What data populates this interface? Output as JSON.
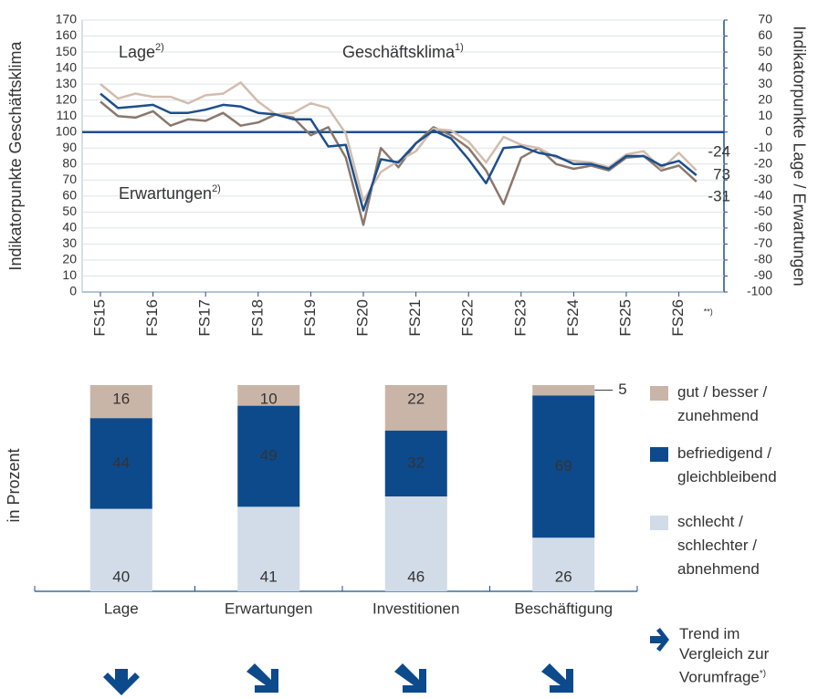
{
  "chart_data": [
    {
      "type": "line",
      "ylabel": "Indikatorpunkte Geschäftsklima",
      "y2label": "Indikatorpunkte Lage / Erwartungen",
      "categories": [
        "FS15",
        null,
        null,
        "FS16",
        null,
        null,
        "FS17",
        null,
        null,
        "FS18",
        null,
        null,
        "FS19",
        null,
        null,
        "FS20",
        null,
        null,
        "FS21",
        null,
        null,
        "FS22",
        null,
        null,
        "FS23",
        null,
        null,
        "FS24",
        null,
        null,
        "FS25",
        null,
        null,
        "FS26",
        "**)"
      ],
      "ylim": [
        0,
        170
      ],
      "yticks": [
        0,
        10,
        20,
        30,
        40,
        50,
        60,
        70,
        80,
        90,
        100,
        110,
        120,
        130,
        140,
        150,
        160,
        170
      ],
      "y2lim": [
        -100,
        70
      ],
      "y2ticks": [
        -100,
        -90,
        -80,
        -70,
        -60,
        -50,
        -40,
        -30,
        -20,
        -10,
        0,
        10,
        20,
        30,
        40,
        50,
        60,
        70
      ],
      "grid": true,
      "hline": 100,
      "hline_color": "#1b4f8c",
      "series": [
        {
          "name": "Geschäftsklima",
          "footnote": "1)",
          "color": "#1b4f8c",
          "axis": "y",
          "values": [
            124,
            115,
            116,
            117,
            112,
            112,
            114,
            117,
            116,
            112,
            111,
            108,
            108,
            91,
            92,
            51,
            83,
            81,
            93,
            101,
            96,
            83,
            68,
            90,
            91,
            87,
            85,
            80,
            80,
            77,
            85,
            85,
            79,
            82,
            73
          ]
        },
        {
          "name": "Lage",
          "footnote": "2)",
          "color": "#d2bdae",
          "axis": "y2",
          "values": [
            30,
            21,
            24,
            22,
            22,
            18,
            23,
            24,
            31,
            19,
            11,
            12,
            18,
            15,
            -1,
            -43,
            -25,
            -18,
            -12,
            2,
            1,
            -6,
            -19,
            -3,
            -8,
            -10,
            -16,
            -18,
            -19,
            -22,
            -14,
            -12,
            -23,
            -13,
            -24
          ]
        },
        {
          "name": "Erwartungen",
          "footnote": "2)",
          "color": "#8a786b",
          "axis": "y2",
          "values": [
            19,
            10,
            9,
            13,
            4,
            8,
            7,
            12,
            4,
            6,
            11,
            9,
            -2,
            3,
            -16,
            -58,
            -10,
            -22,
            -7,
            3,
            -2,
            -10,
            -24,
            -45,
            -16,
            -10,
            -20,
            -23,
            -21,
            -24,
            -16,
            -15,
            -24,
            -21,
            -31
          ]
        }
      ]
    },
    {
      "type": "stacked-bar",
      "ylabel": "in Prozent",
      "categories": [
        "Lage",
        "Erwartungen",
        "Investitionen",
        "Beschäftigung"
      ],
      "ylim": [
        0,
        100
      ],
      "series": [
        {
          "name": "gut / besser / zunehmend",
          "color": "#c9b5a7",
          "values": [
            16,
            10,
            22,
            5
          ]
        },
        {
          "name": "befriedigend / gleichbleibend",
          "color": "#0d4a8c",
          "values": [
            44,
            49,
            32,
            69
          ]
        },
        {
          "name": "schlecht / schlechter / abnehmend",
          "color": "#d1dce8",
          "values": [
            40,
            41,
            46,
            26
          ]
        }
      ],
      "trend_note": "Trend im Vergleich zur Vorumfrage",
      "trend_footnote": "*)"
    }
  ]
}
